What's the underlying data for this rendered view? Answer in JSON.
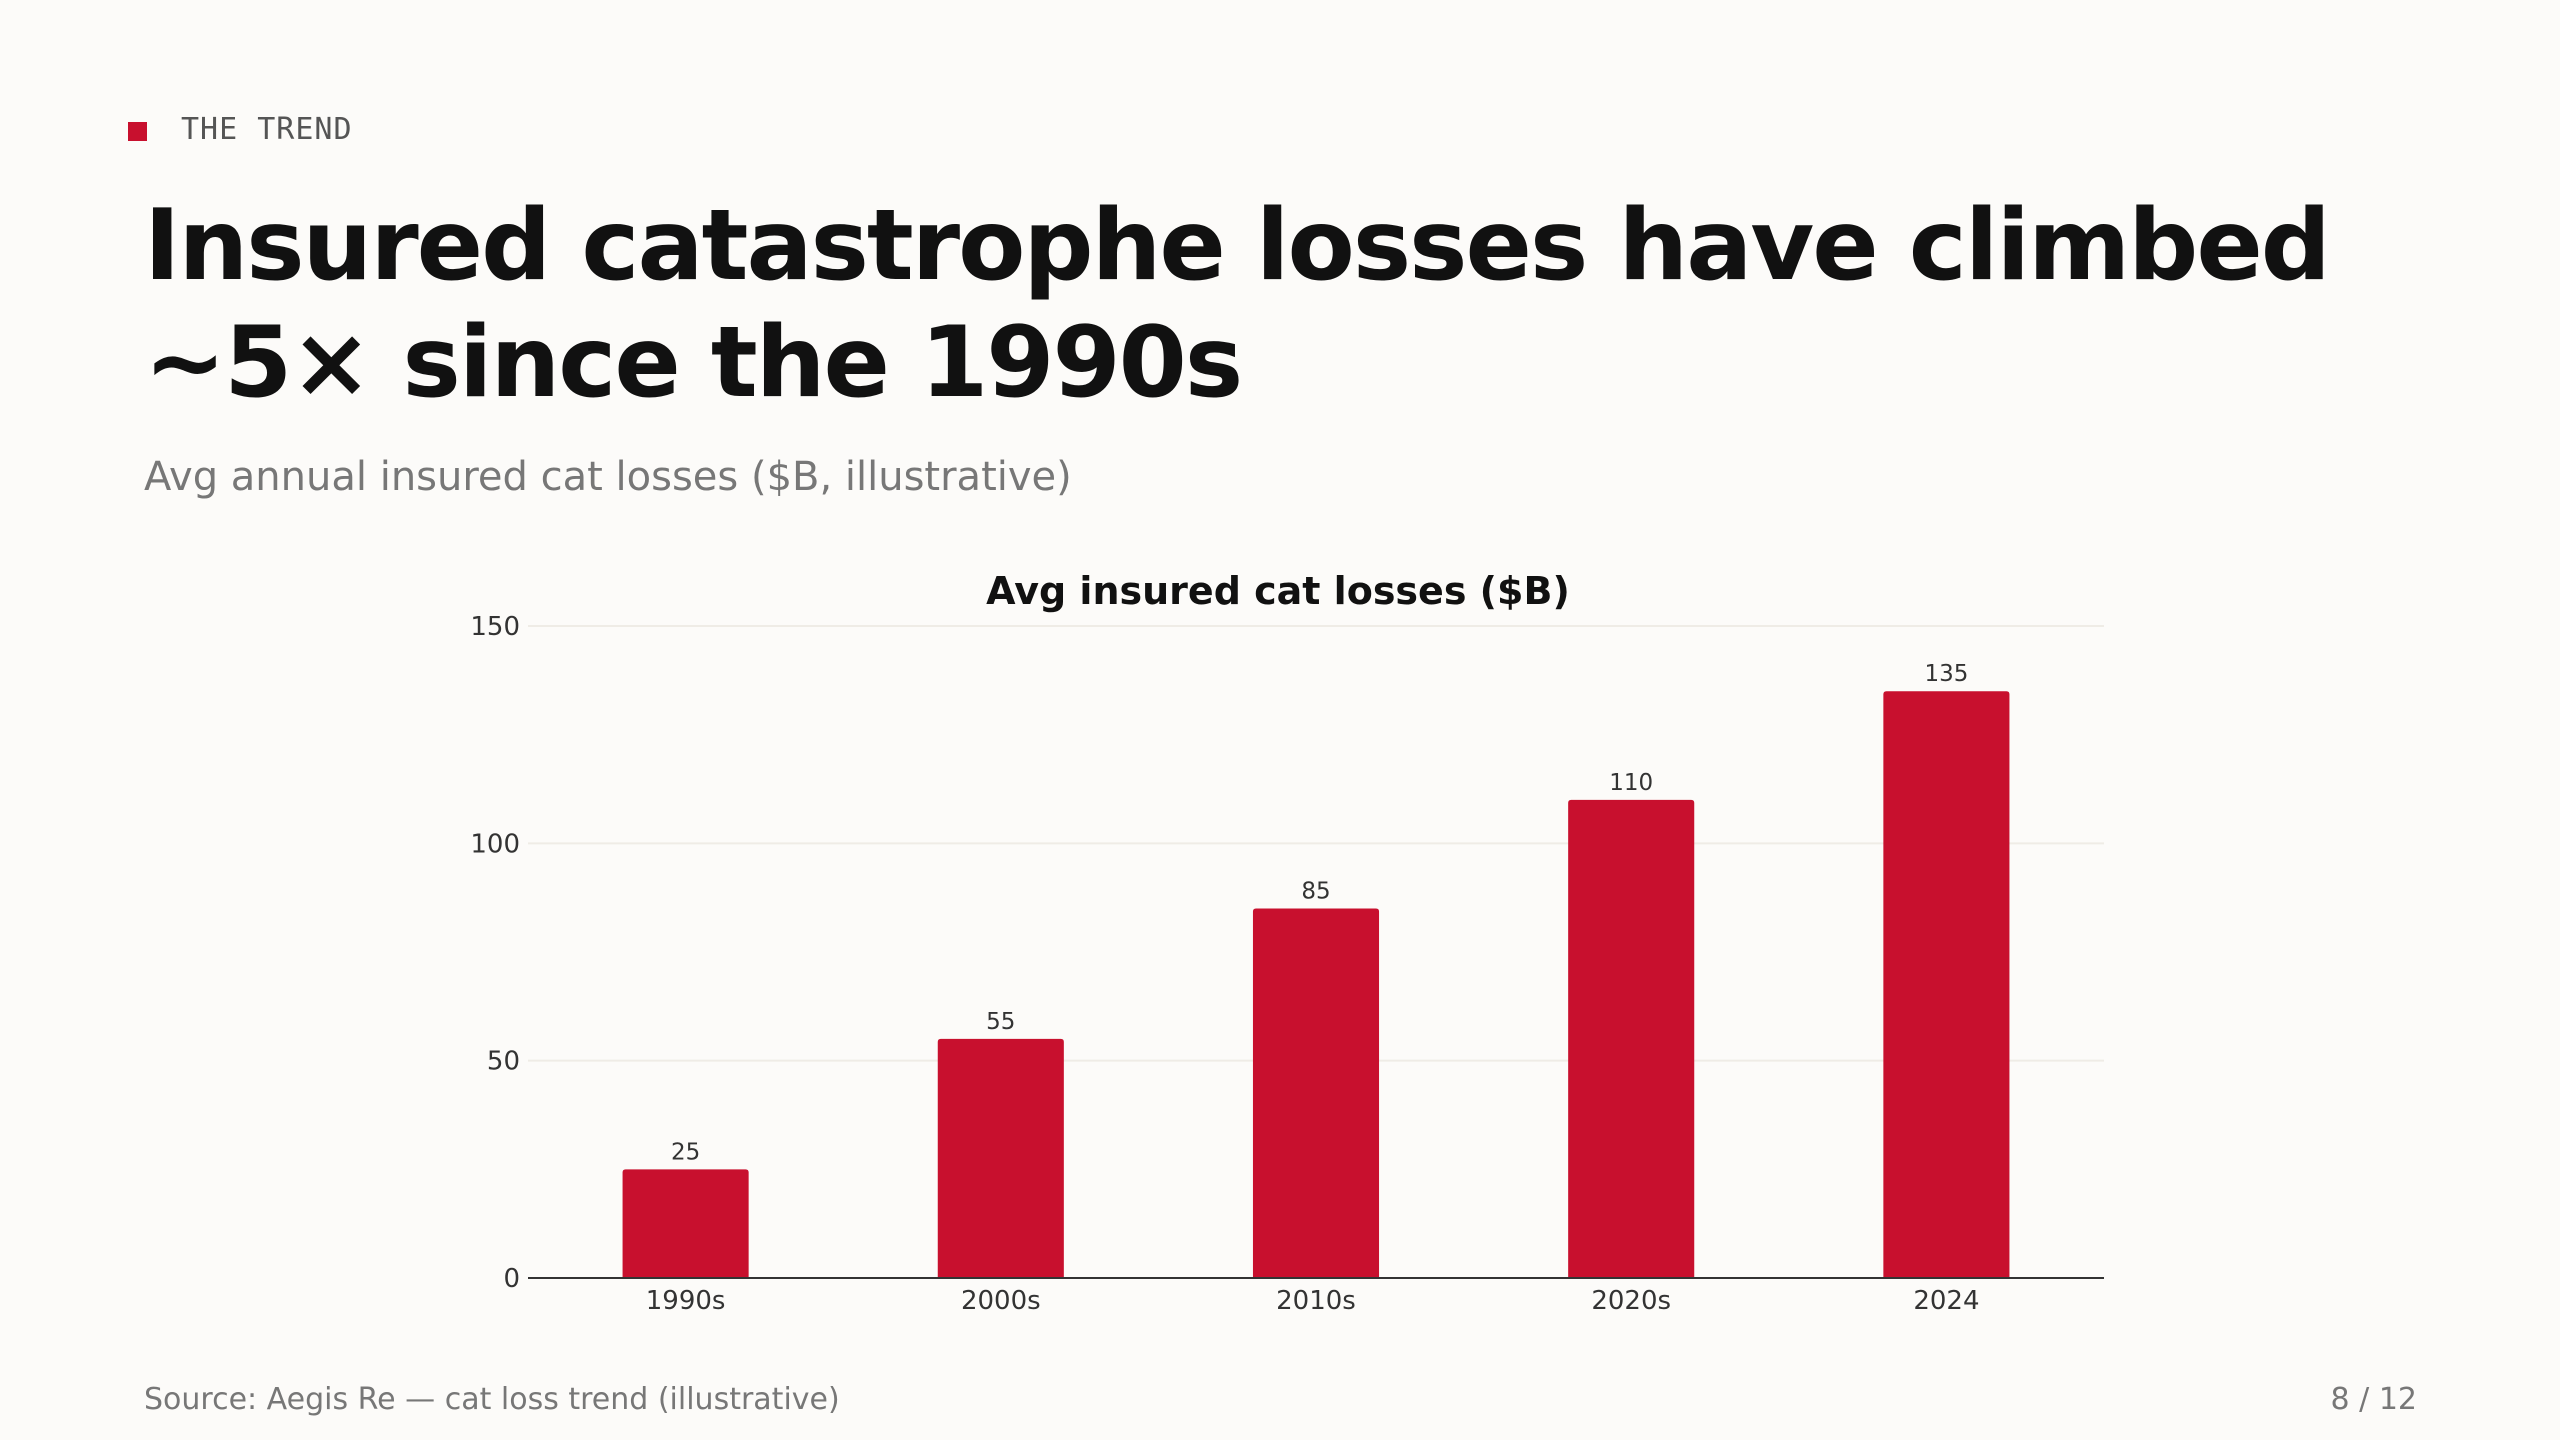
{
  "slide": {
    "eyebrow": "THE TREND",
    "title": "Insured catastrophe losses have climbed ~5× since the 1990s",
    "subtitle": "Avg annual insured cat losses ($B, illustrative)",
    "source": "Source: Aegis Re — cat loss trend (illustrative)",
    "page": "8 / 12",
    "accent_color": "#c8102e"
  },
  "chart_data": {
    "type": "bar",
    "title": "Avg insured cat losses ($B)",
    "categories": [
      "1990s",
      "2000s",
      "2010s",
      "2020s",
      "2024"
    ],
    "values": [
      25,
      55,
      85,
      110,
      135
    ],
    "value_labels": [
      "25",
      "55",
      "85",
      "110",
      "135"
    ],
    "xlabel": "",
    "ylabel": "",
    "ylim": [
      0,
      150
    ],
    "yticks": [
      0,
      50,
      100,
      150
    ],
    "ytick_labels": [
      "0",
      "50",
      "100",
      "150"
    ],
    "grid": true,
    "legend": "none",
    "bar_color": "#c8102e"
  }
}
